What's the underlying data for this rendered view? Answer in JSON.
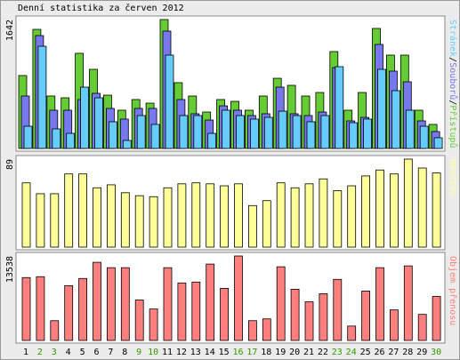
{
  "title": "Denní statistika za červen 2012",
  "chart_data": [
    {
      "type": "bar",
      "legend_separator": "/",
      "series": [
        {
          "name": "Přístupů",
          "color": "#66cc33",
          "values": [
            929,
            1517,
            668,
            645,
            1212,
            1008,
            679,
            487,
            623,
            577,
            1642,
            838,
            668,
            464,
            623,
            600,
            487,
            668,
            894,
            804,
            668,
            713,
            1234,
            487,
            713,
            1529,
            1189,
            1189,
            487,
            306
          ]
        },
        {
          "name": "Souborů",
          "color": "#7777ee",
          "values": [
            668,
            1438,
            487,
            487,
            623,
            702,
            510,
            374,
            510,
            510,
            1495,
            623,
            442,
            362,
            543,
            487,
            419,
            442,
            781,
            442,
            419,
            464,
            1030,
            351,
            396,
            1325,
            985,
            849,
            351,
            215
          ]
        },
        {
          "name": "Stránek",
          "color": "#66ccff",
          "values": [
            283,
            1302,
            249,
            192,
            781,
            645,
            340,
            102,
            419,
            306,
            1189,
            419,
            419,
            192,
            487,
            419,
            374,
            396,
            475,
            419,
            340,
            419,
            1042,
            328,
            374,
            1008,
            736,
            487,
            283,
            136
          ]
        }
      ],
      "ylim": [
        0,
        1642
      ],
      "yticks": [
        1642
      ]
    },
    {
      "type": "bar",
      "series": [
        {
          "name": "Návštěv",
          "color": "#ffff99",
          "values": [
            65,
            54,
            54,
            74,
            74,
            60,
            63,
            55,
            52,
            51,
            60,
            64,
            65,
            64,
            62,
            64,
            42,
            47,
            65,
            60,
            64,
            69,
            57,
            62,
            72,
            78,
            74,
            89,
            80,
            75
          ]
        }
      ],
      "ylim": [
        0,
        89
      ],
      "yticks": [
        89
      ]
    },
    {
      "type": "bar",
      "series": [
        {
          "name": "Objem přenosu",
          "color": "#ff7f7f",
          "values": [
            10080,
            10224,
            3168,
            8784,
            9936,
            12528,
            11664,
            11664,
            6480,
            5040,
            11664,
            9216,
            9360,
            12240,
            8352,
            13538,
            3168,
            3456,
            11808,
            8208,
            6192,
            7488,
            9792,
            2304,
            7920,
            11664,
            4896,
            11952,
            4176,
            7056
          ]
        }
      ],
      "ylim": [
        0,
        13538
      ],
      "yticks": [
        13538
      ],
      "categories": [
        "1",
        "2",
        "3",
        "4",
        "5",
        "6",
        "7",
        "8",
        "9",
        "10",
        "11",
        "12",
        "13",
        "14",
        "15",
        "16",
        "17",
        "18",
        "19",
        "20",
        "21",
        "22",
        "23",
        "24",
        "25",
        "26",
        "27",
        "28",
        "29",
        "30"
      ],
      "category_colors": [
        "#000000",
        "#339900",
        "#339900",
        "#000000",
        "#000000",
        "#000000",
        "#000000",
        "#000000",
        "#339900",
        "#339900",
        "#000000",
        "#000000",
        "#000000",
        "#000000",
        "#000000",
        "#339900",
        "#339900",
        "#000000",
        "#000000",
        "#000000",
        "#000000",
        "#000000",
        "#339900",
        "#339900",
        "#000000",
        "#000000",
        "#000000",
        "#000000",
        "#000000",
        "#339900"
      ]
    }
  ]
}
